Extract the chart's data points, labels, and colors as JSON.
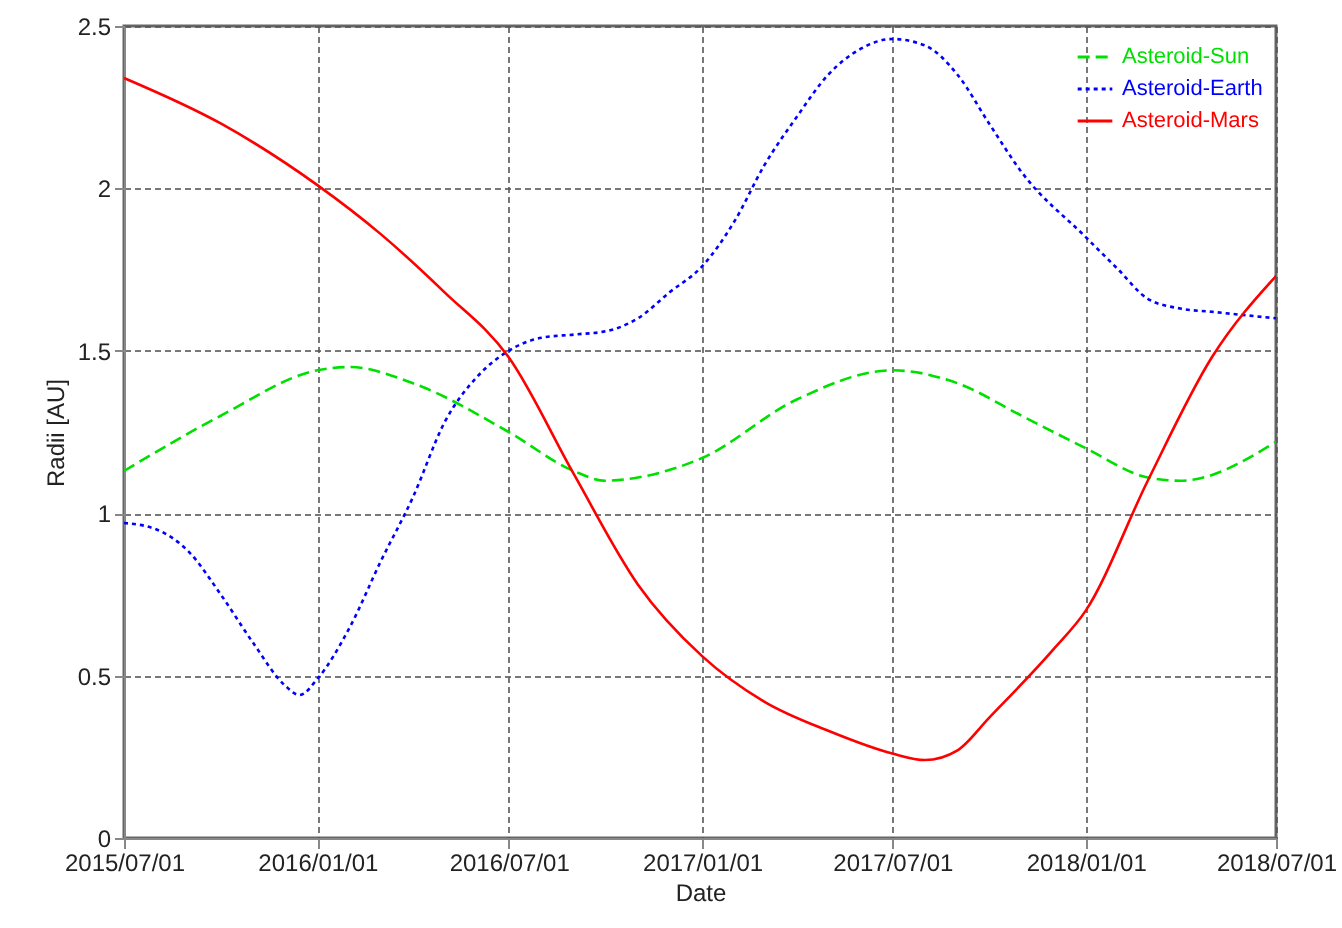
{
  "chart_data": {
    "type": "line",
    "xlabel": "Date",
    "ylabel": "Radii [AU]",
    "xlim": [
      "2015-07-01",
      "2018-07-01"
    ],
    "ylim": [
      0,
      2.5
    ],
    "xticks": [
      {
        "value": "2015-07-01",
        "label": "2015/07/01"
      },
      {
        "value": "2016-01-01",
        "label": "2016/01/01"
      },
      {
        "value": "2016-07-01",
        "label": "2016/07/01"
      },
      {
        "value": "2017-01-01",
        "label": "2017/01/01"
      },
      {
        "value": "2017-07-01",
        "label": "2017/07/01"
      },
      {
        "value": "2018-01-01",
        "label": "2018/01/01"
      },
      {
        "value": "2018-07-01",
        "label": "2018/07/01"
      }
    ],
    "yticks": [
      0,
      0.5,
      1,
      1.5,
      2,
      2.5
    ],
    "grid": true,
    "legend": "top right",
    "marker": "none",
    "series": [
      {
        "name": "Asteroid-Sun",
        "color": "#00e000",
        "line_style": "dashed",
        "x": [
          "2015-07-01",
          "2015-10-01",
          "2016-01-01",
          "2016-02-01",
          "2016-04-01",
          "2016-07-01",
          "2016-09-01",
          "2016-10-01",
          "2016-11-01",
          "2017-01-01",
          "2017-04-01",
          "2017-07-01",
          "2017-09-01",
          "2017-11-01",
          "2018-01-01",
          "2018-03-01",
          "2018-04-01",
          "2018-07-01"
        ],
        "values": [
          1.13,
          1.3,
          1.44,
          1.45,
          1.4,
          1.25,
          1.13,
          1.1,
          1.11,
          1.17,
          1.35,
          1.44,
          1.4,
          1.3,
          1.2,
          1.11,
          1.1,
          1.22
        ]
      },
      {
        "name": "Asteroid-Earth",
        "color": "#0000ff",
        "line_style": "dotted",
        "x": [
          "2015-07-01",
          "2015-08-01",
          "2015-09-01",
          "2015-10-01",
          "2015-11-01",
          "2015-12-01",
          "2015-12-15",
          "2016-01-01",
          "2016-02-01",
          "2016-03-01",
          "2016-04-01",
          "2016-05-01",
          "2016-06-01",
          "2016-07-01",
          "2016-08-01",
          "2016-09-01",
          "2016-10-01",
          "2016-11-01",
          "2016-12-01",
          "2017-01-01",
          "2017-02-01",
          "2017-03-01",
          "2017-04-01",
          "2017-05-01",
          "2017-06-01",
          "2017-07-01",
          "2017-08-01",
          "2017-09-01",
          "2017-10-01",
          "2017-11-01",
          "2018-01-01",
          "2018-02-01",
          "2018-03-01",
          "2018-04-01",
          "2018-05-01",
          "2018-07-01"
        ],
        "values": [
          0.97,
          0.95,
          0.88,
          0.75,
          0.6,
          0.47,
          0.44,
          0.49,
          0.65,
          0.85,
          1.05,
          1.28,
          1.42,
          1.5,
          1.54,
          1.55,
          1.56,
          1.6,
          1.68,
          1.76,
          1.9,
          2.07,
          2.22,
          2.35,
          2.43,
          2.46,
          2.44,
          2.35,
          2.2,
          2.05,
          1.85,
          1.75,
          1.66,
          1.63,
          1.62,
          1.6
        ]
      },
      {
        "name": "Asteroid-Mars",
        "color": "#ff0000",
        "line_style": "solid",
        "x": [
          "2015-07-01",
          "2015-10-01",
          "2016-01-01",
          "2016-03-01",
          "2016-05-01",
          "2016-07-01",
          "2016-09-01",
          "2016-11-01",
          "2017-01-01",
          "2017-03-01",
          "2017-05-01",
          "2017-07-01",
          "2017-08-01",
          "2017-09-01",
          "2017-10-01",
          "2017-12-01",
          "2018-01-01",
          "2018-03-01",
          "2018-05-01",
          "2018-07-01"
        ],
        "values": [
          2.34,
          2.2,
          2.01,
          1.86,
          1.68,
          1.48,
          1.12,
          0.78,
          0.56,
          0.42,
          0.33,
          0.26,
          0.24,
          0.27,
          0.37,
          0.58,
          0.7,
          1.1,
          1.48,
          1.73
        ]
      }
    ]
  }
}
